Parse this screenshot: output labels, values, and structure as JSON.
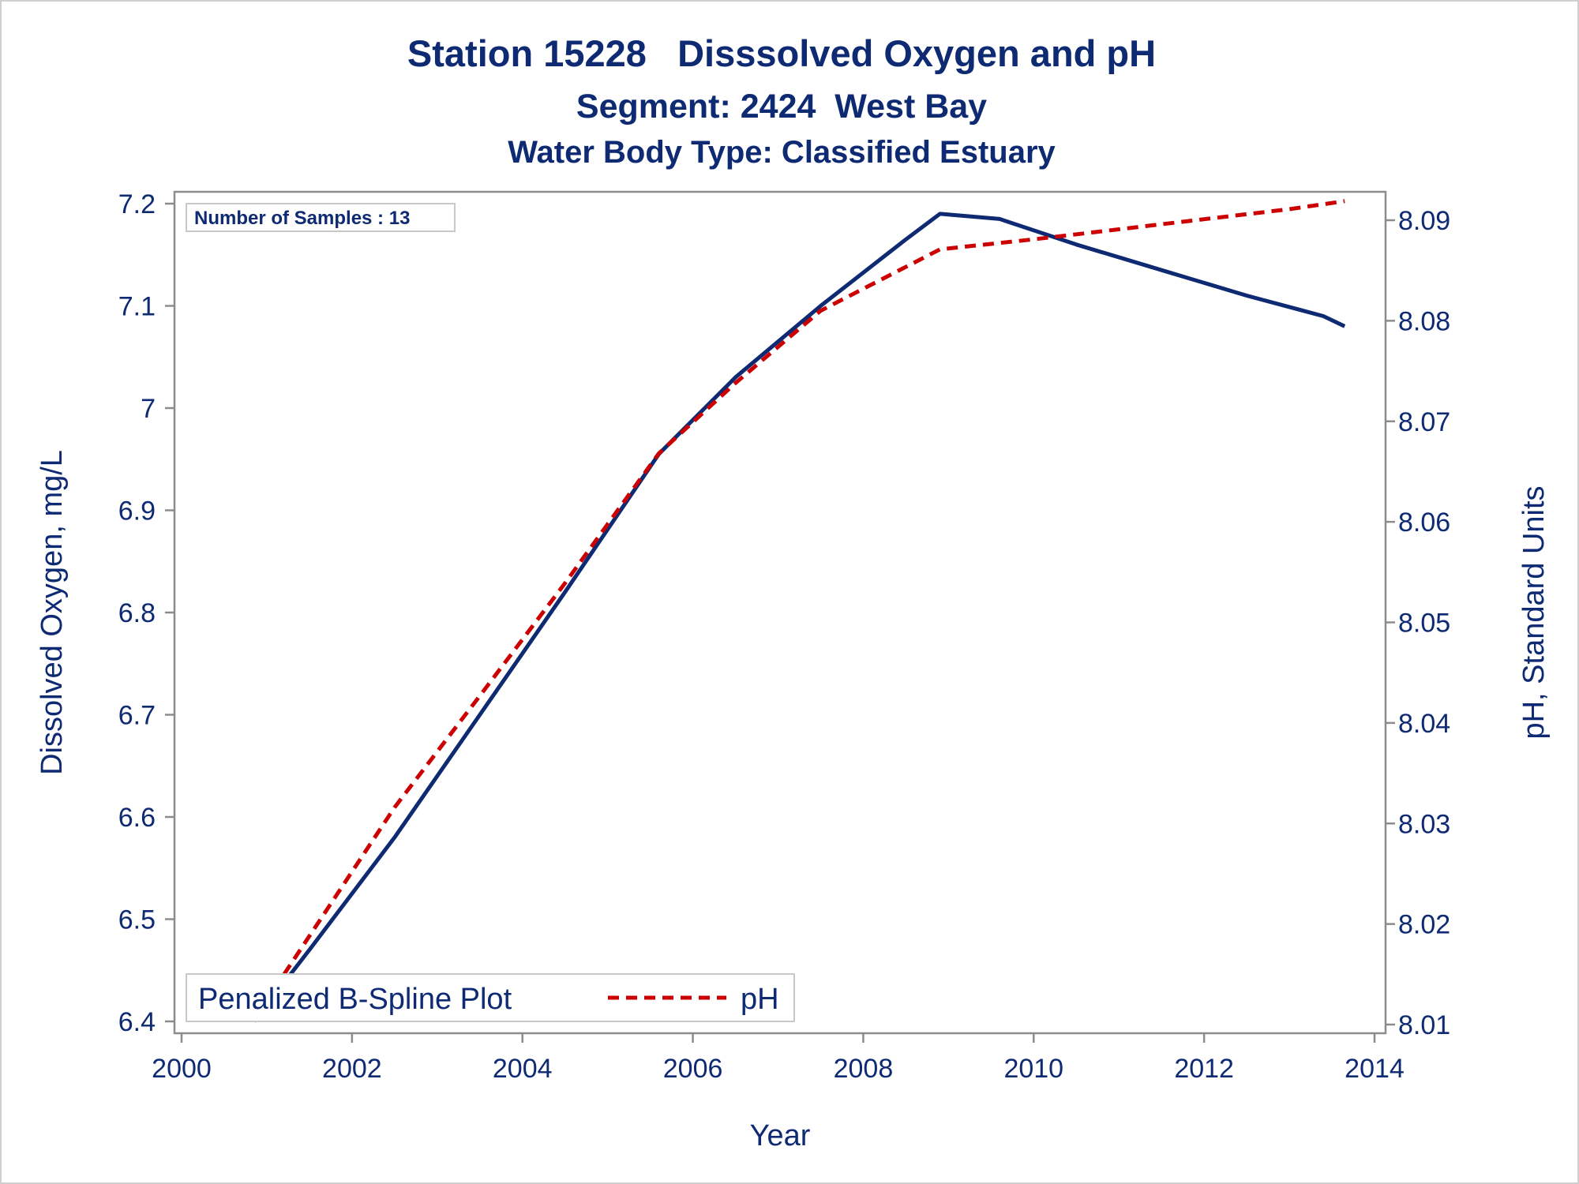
{
  "titles": {
    "line1": "Station 15228   Disssolved Oxygen and pH",
    "line2": "Segment: 2424  West Bay",
    "line3": "Water Body Type: Classified Estuary"
  },
  "inset": {
    "text": "Number of Samples : 13"
  },
  "legend": {
    "title": "Penalized B-Spline Plot",
    "entries": [
      "pH"
    ]
  },
  "colors": {
    "do_line": "#0e2a73",
    "ph_line": "#cc0000",
    "text": "#0e2a73",
    "axis": "#8c8c8c"
  },
  "chart_data": {
    "type": "line",
    "xlabel": "Year",
    "ylabel": "Dissolved Oxygen, mg/L",
    "y2label": "pH, Standard Units",
    "xlim": [
      2000,
      2014
    ],
    "ylim": [
      6.4,
      7.2
    ],
    "y2lim": [
      8.01,
      8.09
    ],
    "xticks": [
      2000,
      2002,
      2004,
      2006,
      2008,
      2010,
      2012,
      2014
    ],
    "yticks": [
      6.4,
      6.5,
      6.6,
      6.7,
      6.8,
      6.9,
      7.0,
      7.1,
      7.2
    ],
    "ytick_labels": [
      "6.4",
      "6.5",
      "6.6",
      "6.7",
      "6.8",
      "6.9",
      "7",
      "7.1",
      "7.2"
    ],
    "y2ticks": [
      8.01,
      8.02,
      8.03,
      8.04,
      8.05,
      8.06,
      8.07,
      8.08,
      8.09
    ],
    "y2tick_labels": [
      "8.01",
      "8.02",
      "8.03",
      "8.04",
      "8.05",
      "8.06",
      "8.07",
      "8.08",
      "8.09"
    ],
    "grid": false,
    "legend_position": "bottom-left",
    "series": [
      {
        "axis": "left",
        "style": "solid",
        "x": [
          2000.85,
          2001.5,
          2002.5,
          2003.5,
          2004.5,
          2005.6,
          2006.5,
          2007.5,
          2008.5,
          2008.9,
          2009.6,
          2010.5,
          2011.5,
          2012.5,
          2013.4,
          2013.65
        ],
        "values": [
          6.4,
          6.47,
          6.58,
          6.7,
          6.82,
          6.955,
          7.03,
          7.1,
          7.165,
          7.19,
          7.185,
          7.16,
          7.135,
          7.11,
          7.09,
          7.08
        ]
      },
      {
        "name": "pH",
        "axis": "right",
        "style": "dashed",
        "x": [
          2000.85,
          2001.5,
          2002.5,
          2003.5,
          2004.5,
          2005.6,
          2006.5,
          2007.5,
          2008.9,
          2010.0,
          2011.0,
          2012.0,
          2013.0,
          2013.65
        ],
        "values": [
          8.0105,
          8.0188,
          8.0316,
          8.0427,
          8.0539,
          8.0668,
          8.0738,
          8.081,
          8.0871,
          8.0881,
          8.0891,
          8.0901,
          8.0911,
          8.0919
        ]
      }
    ]
  }
}
